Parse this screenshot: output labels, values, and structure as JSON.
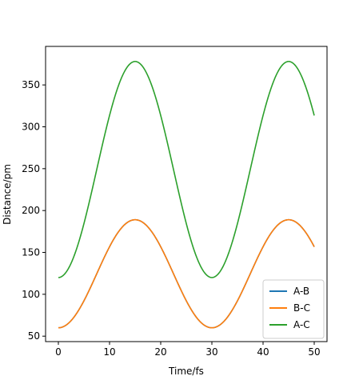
{
  "chart_data": {
    "type": "line",
    "title": "",
    "xlabel": "Time/fs",
    "ylabel": "Distance/pm",
    "xlim": [
      -2.5,
      52.5
    ],
    "ylim": [
      43.5,
      396
    ],
    "xticks": [
      0,
      10,
      20,
      30,
      40,
      50
    ],
    "yticks": [
      50,
      100,
      150,
      200,
      250,
      300,
      350
    ],
    "grid": false,
    "legend_position": "lower right",
    "series": [
      {
        "name": "A-B",
        "color": "#1f77b4",
        "y_min": 60,
        "y_max": 189,
        "period_fs": 30,
        "min_at_fs": 0
      },
      {
        "name": "B-C",
        "color": "#ff7f0e",
        "y_min": 60,
        "y_max": 189,
        "period_fs": 30,
        "min_at_fs": 0
      },
      {
        "name": "A-C",
        "color": "#2ca02c",
        "y_min": 120,
        "y_max": 378,
        "period_fs": 30,
        "min_at_fs": 0
      }
    ],
    "x_range_fs": [
      0,
      50
    ]
  }
}
